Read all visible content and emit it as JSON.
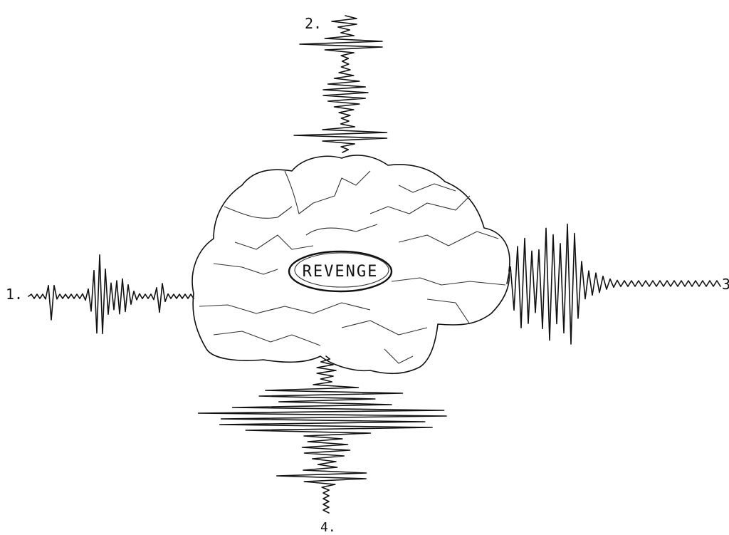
{
  "labels": {
    "left": "1.",
    "top": "2.",
    "right": "3",
    "bottom": "4."
  },
  "center_label": "REVENGE"
}
